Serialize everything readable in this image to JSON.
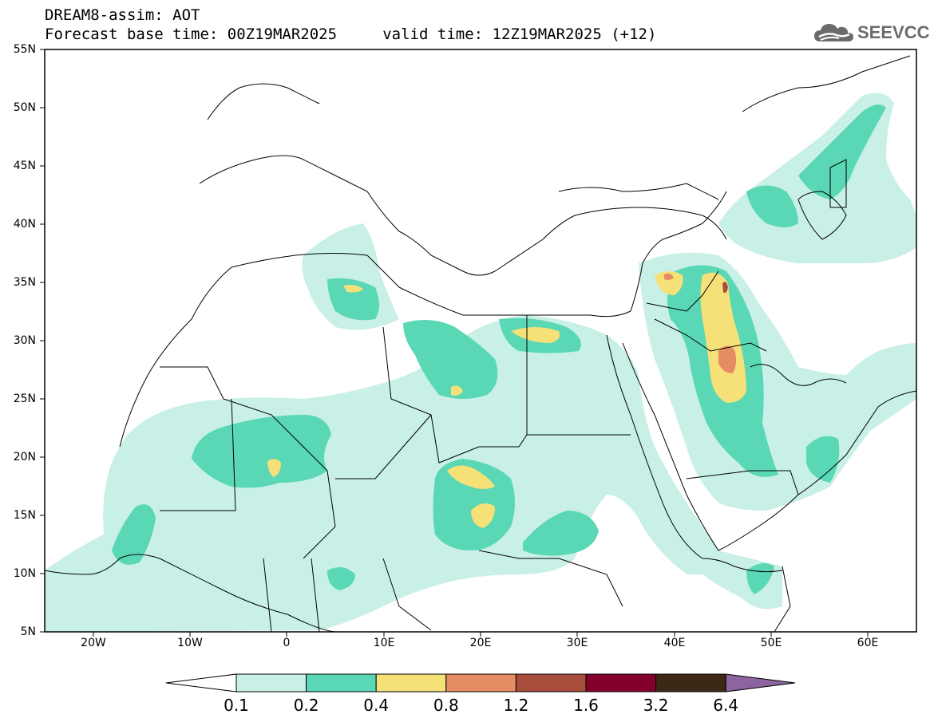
{
  "title": {
    "line1": "DREAM8-assim: AOT",
    "line2": "Forecast base time: 00Z19MAR2025     valid time: 12Z19MAR2025 (+12)"
  },
  "logo": {
    "text": "SEEVCCC",
    "icon": "cloud-icon",
    "color": "#6b6b6b"
  },
  "map": {
    "lat_range": [
      5,
      55
    ],
    "lon_range": [
      -25,
      65
    ],
    "lat_labels": [
      "5N",
      "10N",
      "15N",
      "20N",
      "25N",
      "30N",
      "35N",
      "40N",
      "45N",
      "50N",
      "55N"
    ],
    "lon_labels": [
      "20W",
      "10W",
      "0",
      "10E",
      "20E",
      "30E",
      "40E",
      "50E",
      "60E"
    ],
    "lon_ticks": [
      -20,
      -10,
      0,
      10,
      20,
      30,
      40,
      50,
      60
    ]
  },
  "colorbar": {
    "labels": [
      "0.1",
      "0.2",
      "0.4",
      "0.8",
      "1.2",
      "1.6",
      "3.2",
      "6.4"
    ],
    "colors": [
      "#ffffff",
      "#c8f0e6",
      "#5ad7b4",
      "#f5e178",
      "#e68c64",
      "#a84c3c",
      "#82002a",
      "#3c2814",
      "#8c64a0"
    ]
  }
}
